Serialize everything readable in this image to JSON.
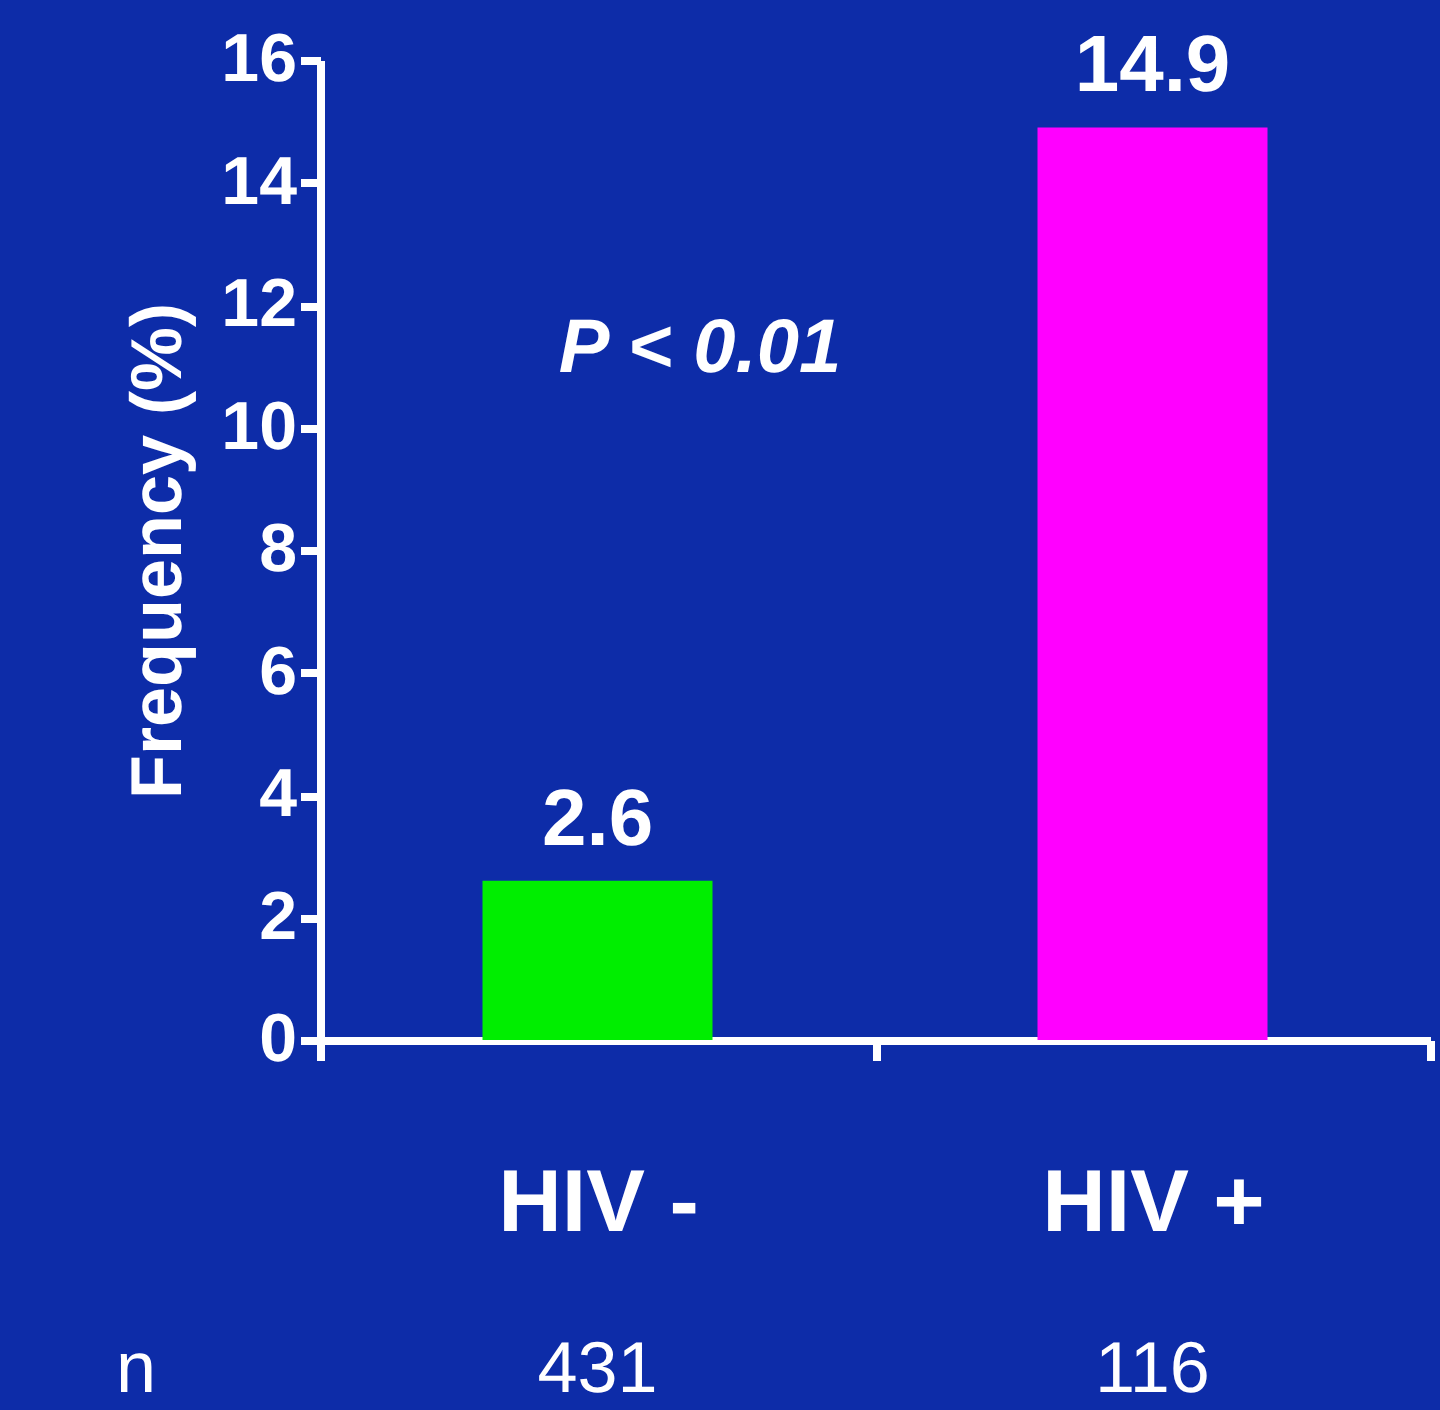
{
  "chart_data": {
    "type": "bar",
    "ylabel": "Frequency (%)",
    "categories": [
      "HIV -",
      "HIV +"
    ],
    "values": [
      2.6,
      14.9
    ],
    "colors": [
      "#00ee00",
      "#ff00ff"
    ],
    "ylim": [
      0,
      16
    ],
    "yticks": [
      0,
      2,
      4,
      6,
      8,
      10,
      12,
      14,
      16
    ],
    "grid": false,
    "data_labels": true,
    "annotations": [
      "P < 0.01",
      "n",
      "431",
      "116"
    ]
  }
}
